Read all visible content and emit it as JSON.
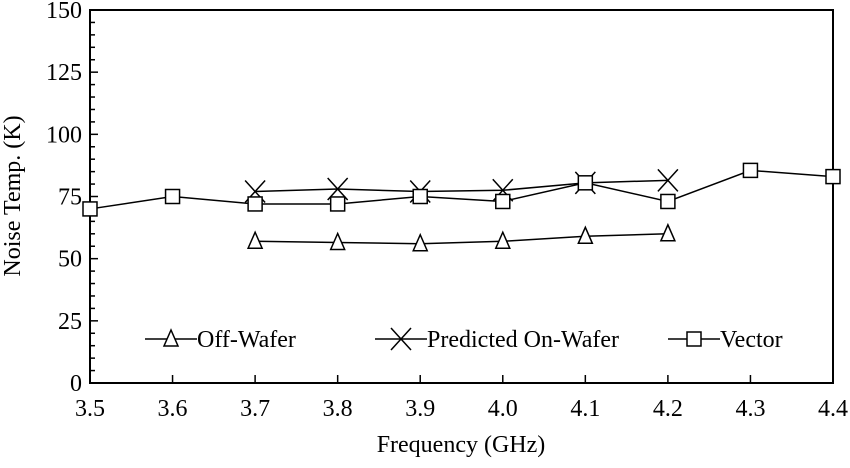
{
  "chart_data": {
    "type": "line",
    "title": "",
    "xlabel": "Frequency (GHz)",
    "ylabel": "Noise Temp. (K)",
    "xlim": [
      3.5,
      4.4
    ],
    "ylim": [
      0,
      150
    ],
    "xticks": [
      "3.5",
      "3.6",
      "3.7",
      "3.8",
      "3.9",
      "4.0",
      "4.1",
      "4.2",
      "4.3",
      "4.4"
    ],
    "yticks": [
      "0",
      "25",
      "50",
      "75",
      "100",
      "125",
      "150"
    ],
    "grid": false,
    "legend_placement": "bottom",
    "series": [
      {
        "name": "Off-Wafer",
        "marker": "triangle",
        "x": [
          3.7,
          3.8,
          3.9,
          4.0,
          4.1,
          4.2
        ],
        "y": [
          57,
          56.5,
          56,
          57,
          59,
          60
        ]
      },
      {
        "name": "Predicted On-Wafer",
        "marker": "x",
        "x": [
          3.7,
          3.8,
          3.9,
          4.0,
          4.1,
          4.2
        ],
        "y": [
          77,
          78,
          77,
          77.5,
          80.5,
          81.5
        ]
      },
      {
        "name": "Vector",
        "marker": "square",
        "x": [
          3.5,
          3.6,
          3.7,
          3.8,
          3.9,
          4.0,
          4.1,
          4.2,
          4.3,
          4.4
        ],
        "y": [
          70,
          75,
          72,
          72,
          75,
          73,
          80.5,
          73,
          85.5,
          83
        ]
      }
    ]
  }
}
